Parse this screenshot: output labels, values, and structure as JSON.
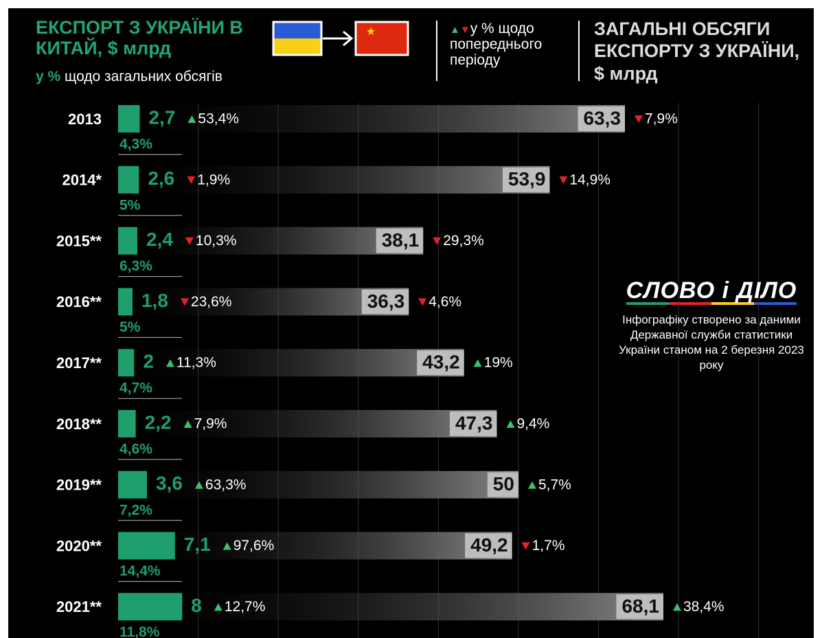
{
  "chart_data": {
    "type": "bar",
    "orientation": "horizontal",
    "subtitle_highlight": "у %",
    "subtitle": "щодо загальних обсягів",
    "legend_note": "у % щодо попереднього періоду",
    "logo": "СЛОВО і ДІЛО",
    "source": "Інфографіку створено за даними Державної служби статистики України станом на 2 березня 2023 року",
    "categories": [
      "2013",
      "2014*",
      "2015**",
      "2016**",
      "2017**",
      "2018**",
      "2019**",
      "2020**",
      "2021**"
    ],
    "series": [
      {
        "name": "ЕКСПОРТ З УКРАЇНИ В КИТАЙ, $ млрд",
        "color": "#1f9e6e",
        "values": [
          2.7,
          2.6,
          2.4,
          1.8,
          2,
          2.2,
          3.6,
          7.1,
          8
        ],
        "value_labels": [
          "2,7",
          "2,6",
          "2,4",
          "1,8",
          "2",
          "2,2",
          "3,6",
          "7,1",
          "8"
        ]
      },
      {
        "name": "ЗАГАЛЬНІ ОБСЯГИ ЕКСПОРТУ З УКРАЇНИ, $ млрд",
        "color": "#bdbdbd",
        "values": [
          63.3,
          53.9,
          38.1,
          36.3,
          43.2,
          47.3,
          50,
          49.2,
          68.1
        ],
        "value_labels": [
          "63,3",
          "53,9",
          "38,1",
          "36,3",
          "43,2",
          "47,3",
          "50",
          "49,2",
          "68,1"
        ]
      }
    ],
    "share": {
      "values": [
        4.3,
        5,
        6.3,
        5,
        4.7,
        4.6,
        7.2,
        14.4,
        11.8
      ],
      "value_labels": [
        "4,3%",
        "5%",
        "6,3%",
        "5%",
        "4,7%",
        "4,6%",
        "7,2%",
        "14,4%",
        "11,8%"
      ]
    },
    "change_export": {
      "values": [
        53.4,
        -1.9,
        -10.3,
        -23.6,
        11.3,
        7.9,
        63.3,
        97.6,
        12.7
      ],
      "value_labels": [
        "53,4%",
        "1,9%",
        "10,3%",
        "23,6%",
        "11,3%",
        "7,9%",
        "63,3%",
        "97,6%",
        "12,7%"
      ]
    },
    "change_total": {
      "values": [
        -7.9,
        -14.9,
        -29.3,
        -4.6,
        19,
        9.4,
        5.7,
        -1.7,
        38.4
      ],
      "value_labels": [
        "7,9%",
        "14,9%",
        "29,3%",
        "4,6%",
        "19%",
        "9,4%",
        "5,7%",
        "1,7%",
        "38,4%"
      ]
    },
    "up_color": "#3cbf6e",
    "down_color": "#e3222b",
    "xlim": [
      0,
      88
    ],
    "xticks": [
      10,
      20,
      30,
      40,
      50,
      60,
      70,
      80
    ],
    "grid": true
  }
}
